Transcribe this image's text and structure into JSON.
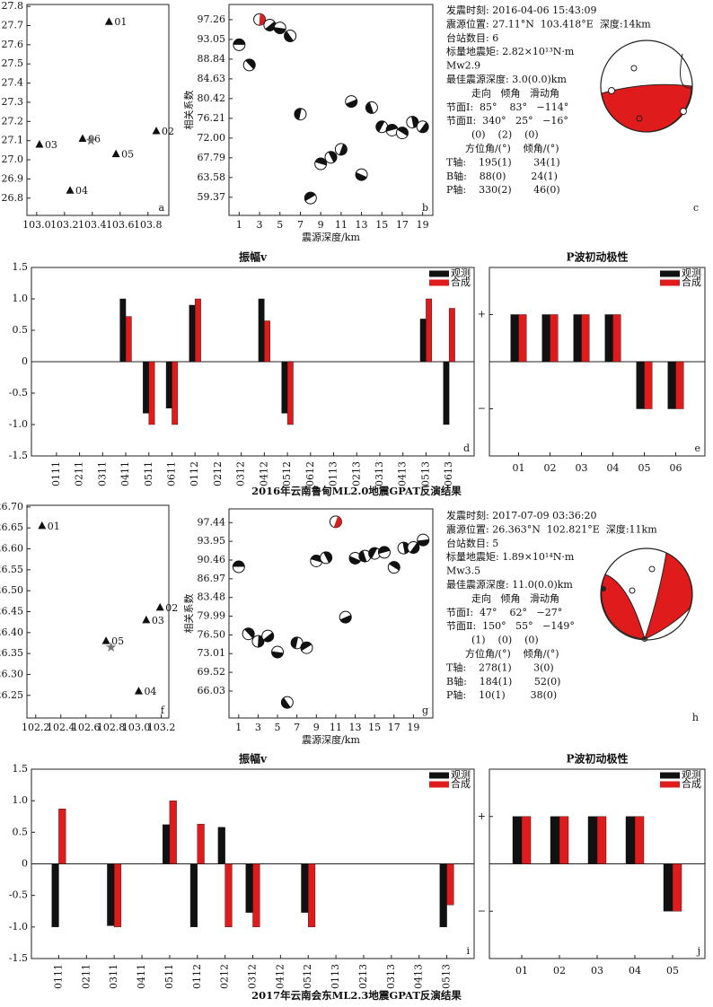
{
  "chart_data": [
    {
      "type": "map",
      "panel_label": "a",
      "xlim": [
        102.93,
        103.95
      ],
      "ylim": [
        26.71,
        27.81
      ],
      "xticks": [
        {
          "value": 103,
          "label": "103.0"
        },
        103.2,
        103.4,
        103.6,
        103.8
      ],
      "yticks": [
        26.8,
        26.9,
        {
          "value": 27,
          "label": "27.0"
        },
        27.1,
        27.2,
        27.3,
        27.4,
        27.5,
        27.6,
        27.7,
        27.8
      ],
      "stations": {
        "labels": [
          "01",
          "02",
          "03",
          "04",
          "05",
          "06"
        ],
        "x": [
          103.52,
          103.86,
          103.02,
          103.24,
          103.57,
          103.33
        ],
        "y": [
          27.72,
          27.15,
          27.08,
          26.84,
          27.03,
          27.11
        ]
      },
      "epicenter": {
        "x": 103.39,
        "y": 27.1
      },
      "color": "#111111",
      "epicenter_color": "#777777"
    },
    {
      "type": "scatter",
      "marker": "beachball",
      "panel_label": "b",
      "xlabel": "震源深度/km",
      "ylabel": "相关系数",
      "xlim": [
        0,
        20
      ],
      "ylim": [
        55.5,
        100.5
      ],
      "xticks": [
        1,
        3,
        5,
        7,
        9,
        11,
        13,
        15,
        17,
        19
      ],
      "yticks": [
        59.37,
        63.58,
        67.79,
        {
          "value": 72,
          "label": "72.00"
        },
        76.21,
        80.42,
        84.63,
        88.84,
        93.05,
        97.26
      ],
      "x": [
        1,
        2,
        3,
        4,
        5,
        6,
        7,
        8,
        9,
        10,
        11,
        12,
        13,
        14,
        15,
        16,
        17,
        18,
        19
      ],
      "values": [
        91.9,
        87.6,
        97.3,
        96.1,
        95.5,
        93.8,
        77.1,
        59.2,
        66.5,
        67.9,
        69.6,
        79.8,
        64.2,
        78.5,
        74.4,
        73.7,
        73.1,
        75.4,
        74.4
      ],
      "point_colors": [
        "#111111",
        "#111111",
        "#d42020",
        "#111111",
        "#111111",
        "#111111",
        "#111111",
        "#111111",
        "#111111",
        "#111111",
        "#111111",
        "#111111",
        "#111111",
        "#111111",
        "#111111",
        "#111111",
        "#111111",
        "#111111",
        "#111111"
      ]
    },
    {
      "type": "bar",
      "title": "振幅v",
      "panel_label": "d",
      "ylim": [
        -1.5,
        1.5
      ],
      "yticks": [
        -1.5,
        {
          "value": -1,
          "label": "-1.0"
        },
        -0.5,
        0,
        0.5,
        {
          "value": 1,
          "label": "1.0"
        },
        1.5
      ],
      "categories": [
        "0111",
        "0211",
        "0311",
        "0411",
        "0511",
        "0611",
        "0112",
        "0212",
        "0312",
        "0412",
        "0512",
        "0612",
        "0113",
        "0213",
        "0313",
        "0413",
        "0513",
        "0613"
      ],
      "series": [
        {
          "name": "观测",
          "color": "#111111",
          "values": [
            null,
            null,
            null,
            1.0,
            -0.82,
            -0.74,
            0.9,
            null,
            null,
            1.0,
            -0.82,
            null,
            null,
            null,
            null,
            null,
            0.68,
            -1.0
          ]
        },
        {
          "name": "合成",
          "color": "#e01b1b",
          "values": [
            null,
            null,
            null,
            0.72,
            -1.0,
            -1.0,
            1.0,
            null,
            null,
            0.65,
            -1.0,
            null,
            null,
            null,
            null,
            null,
            1.0,
            0.85
          ]
        }
      ]
    },
    {
      "type": "bar",
      "title": "P波初动极性",
      "panel_label": "e",
      "ylim": [
        -2,
        2
      ],
      "yticks": [
        {
          "value": -1,
          "label": "−"
        },
        {
          "value": 1,
          "label": "+"
        }
      ],
      "categories": [
        "01",
        "02",
        "03",
        "04",
        "05",
        "06"
      ],
      "series": [
        {
          "name": "观测",
          "color": "#111111",
          "values": [
            1,
            1,
            1,
            1,
            -1,
            -1
          ]
        },
        {
          "name": "合成",
          "color": "#e01b1b",
          "values": [
            1,
            1,
            1,
            1,
            -1,
            -1
          ]
        }
      ]
    },
    {
      "type": "map",
      "panel_label": "f",
      "xlim": [
        102.13,
        103.26
      ],
      "ylim": [
        26.196,
        26.704
      ],
      "xticks": [
        102.2,
        102.4,
        102.6,
        102.8,
        {
          "value": 103,
          "label": "103.0"
        },
        103.2
      ],
      "yticks": [
        26.25,
        {
          "value": 26.3,
          "label": "26.30"
        },
        26.35,
        {
          "value": 26.4,
          "label": "26.40"
        },
        26.45,
        {
          "value": 26.5,
          "label": "26.50"
        },
        26.55,
        {
          "value": 26.6,
          "label": "26.60"
        },
        26.65,
        {
          "value": 26.7,
          "label": "26.70"
        }
      ],
      "stations": {
        "labels": [
          "01",
          "02",
          "03",
          "04",
          "05"
        ],
        "x": [
          102.25,
          103.19,
          103.08,
          103.02,
          102.76
        ],
        "y": [
          26.655,
          26.46,
          26.43,
          26.26,
          26.38
        ]
      },
      "epicenter": {
        "x": 102.8,
        "y": 26.365
      },
      "color": "#111111",
      "epicenter_color": "#777777"
    },
    {
      "type": "scatter",
      "marker": "beachball",
      "panel_label": "g",
      "xlabel": "震源深度/km",
      "ylabel": "相关系数",
      "xlim": [
        0,
        21
      ],
      "ylim": [
        61,
        100
      ],
      "xticks": [
        1,
        3,
        5,
        7,
        9,
        11,
        13,
        15,
        17,
        19
      ],
      "yticks": [
        66.03,
        69.52,
        73.01,
        {
          "value": 76.5,
          "label": "76.50"
        },
        79.99,
        83.48,
        86.97,
        90.46,
        93.95,
        97.44
      ],
      "x": [
        1,
        2,
        3,
        4,
        5,
        6,
        7,
        8,
        9,
        10,
        11,
        12,
        13,
        14,
        15,
        16,
        17,
        18,
        19,
        20
      ],
      "values": [
        89.2,
        76.7,
        75.3,
        76.3,
        73.3,
        63.9,
        75.0,
        74.1,
        90.3,
        90.9,
        97.6,
        79.8,
        90.8,
        91.2,
        91.7,
        91.9,
        89.1,
        92.7,
        92.8,
        94.2
      ],
      "point_colors": [
        "#111111",
        "#111111",
        "#111111",
        "#111111",
        "#111111",
        "#111111",
        "#111111",
        "#111111",
        "#111111",
        "#111111",
        "#d42020",
        "#111111",
        "#111111",
        "#111111",
        "#111111",
        "#111111",
        "#111111",
        "#111111",
        "#111111",
        "#111111"
      ]
    },
    {
      "type": "bar",
      "title": "振幅v",
      "panel_label": "i",
      "ylim": [
        -1.5,
        1.5
      ],
      "yticks": [
        -1.5,
        {
          "value": -1,
          "label": "-1.0"
        },
        -0.5,
        0,
        0.5,
        {
          "value": 1,
          "label": "1.0"
        },
        1.5
      ],
      "categories": [
        "0111",
        "0211",
        "0311",
        "0411",
        "0511",
        "0112",
        "0212",
        "0312",
        "0412",
        "0512",
        "0113",
        "0213",
        "0313",
        "0413",
        "0513"
      ],
      "series": [
        {
          "name": "观测",
          "color": "#111111",
          "values": [
            -1.0,
            null,
            -0.98,
            null,
            0.62,
            -1.0,
            0.58,
            -0.77,
            null,
            -0.77,
            null,
            null,
            null,
            null,
            -1.0
          ]
        },
        {
          "name": "合成",
          "color": "#e01b1b",
          "values": [
            0.87,
            null,
            -1.0,
            null,
            1.0,
            0.63,
            -1.0,
            -1.0,
            null,
            -1.0,
            null,
            null,
            null,
            null,
            -0.65
          ]
        }
      ]
    },
    {
      "type": "bar",
      "title": "P波初动极性",
      "panel_label": "j",
      "ylim": [
        -2,
        2
      ],
      "yticks": [
        {
          "value": -1,
          "label": "−"
        },
        {
          "value": 1,
          "label": "+"
        }
      ],
      "categories": [
        "01",
        "02",
        "03",
        "04",
        "05"
      ],
      "series": [
        {
          "name": "观测",
          "color": "#111111",
          "values": [
            1,
            1,
            1,
            1,
            -1
          ]
        },
        {
          "name": "合成",
          "color": "#e01b1b",
          "values": [
            1,
            1,
            1,
            1,
            -1
          ]
        }
      ]
    }
  ],
  "figures": [
    {
      "info": [
        "发震时刻: 2016-04-06 15:43:09",
        "震源位置: 27.11°N  103.418°E  深度:14km",
        "台站数目: 6",
        "标量地震矩: 2.82×10¹³N·m",
        "Mw2.9",
        "最佳震源深度: 3.0(0.0)km",
        "        走向   倾角   滑动角",
        "节面Ⅰ:  85°    83°   −114°",
        "节面Ⅱ:  340°   25°   −16°",
        "        (0)    (2)    (0)",
        "      方位角/(°)    倾角/(°)",
        "T轴:    195(1)       34(1)",
        "B轴:    88(0)        24(1)",
        "P轴:    330(2)       46(0)"
      ],
      "mechanism_label": "c",
      "caption": "2016年云南鲁甸ML2.0地震GPAT反演结果"
    },
    {
      "info": [
        "发震时刻: 2017-07-09 03:36:20",
        "震源位置: 26.363°N  102.821°E  深度:11km",
        "台站数目: 5",
        "标量地震矩: 1.89×10¹⁴N·m",
        "Mw3.5",
        "最佳震源深度: 11.0(0.0)km",
        "        走向   倾角   滑动角",
        "节面Ⅰ:  47°    62°   −27°",
        "节面Ⅱ:  150°   55°   −149°",
        "        (1)    (0)    (0)",
        "      方位角/(°)    倾角/(°)",
        "T轴:    278(1)       3(0)",
        "B轴:    184(1)       52(0)",
        "P轴:    10(1)        38(0)"
      ],
      "mechanism_label": "h",
      "caption": "2017年云南会东ML2.3地震GPAT反演结果"
    }
  ]
}
